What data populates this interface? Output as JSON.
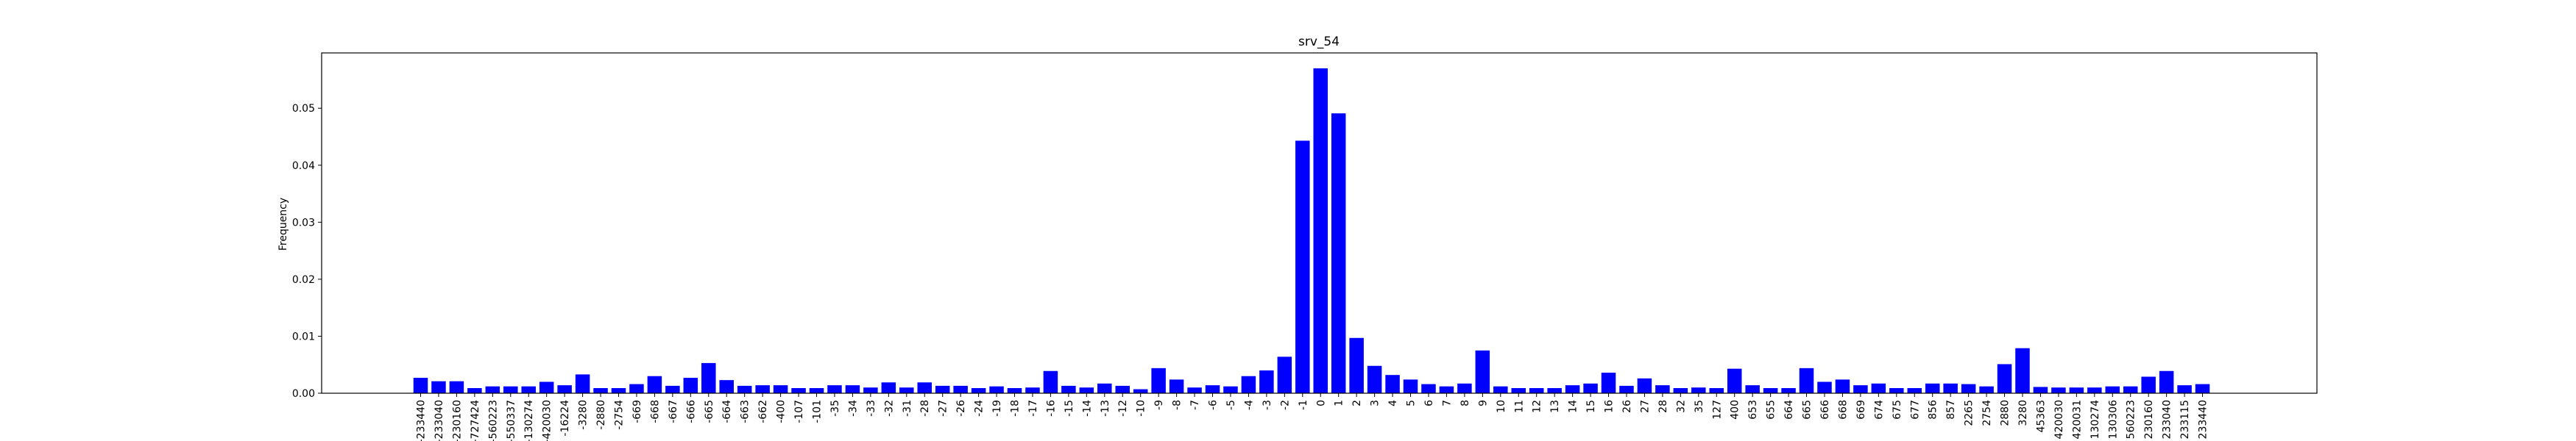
{
  "chart_data": {
    "type": "bar",
    "title": "srv_54",
    "xlabel": "",
    "ylabel": "Frequency",
    "ylim": [
      0,
      0.0597
    ],
    "yticks": [
      0.0,
      0.01,
      0.02,
      0.03,
      0.04,
      0.05
    ],
    "ytick_labels": [
      "0.00",
      "0.01",
      "0.02",
      "0.03",
      "0.04",
      "0.05"
    ],
    "bar_color": "#0000ff",
    "grid": false,
    "categories": [
      "-233440",
      "-233040",
      "-230160",
      "-727424",
      "-560223",
      "-550337",
      "-130274",
      "-420030",
      "-16224",
      "-3280",
      "-2880",
      "-2754",
      "-669",
      "-668",
      "-667",
      "-666",
      "-665",
      "-664",
      "-663",
      "-662",
      "-400",
      "-107",
      "-101",
      "-35",
      "-34",
      "-33",
      "-32",
      "-31",
      "-28",
      "-27",
      "-26",
      "-24",
      "-19",
      "-18",
      "-17",
      "-16",
      "-15",
      "-14",
      "-13",
      "-12",
      "-10",
      "-9",
      "-8",
      "-7",
      "-6",
      "-5",
      "-4",
      "-3",
      "-2",
      "-1",
      "0",
      "1",
      "2",
      "3",
      "4",
      "5",
      "6",
      "7",
      "8",
      "9",
      "10",
      "11",
      "12",
      "13",
      "14",
      "15",
      "16",
      "26",
      "27",
      "28",
      "32",
      "35",
      "127",
      "400",
      "653",
      "655",
      "664",
      "665",
      "666",
      "668",
      "669",
      "674",
      "675",
      "677",
      "856",
      "857",
      "2265",
      "2754",
      "2880",
      "3280",
      "45363",
      "420030",
      "420031",
      "130274",
      "130306",
      "560223",
      "230160",
      "233040",
      "233115",
      "233440"
    ],
    "values": [
      0.0027,
      0.0021,
      0.0021,
      0.0009,
      0.0012,
      0.0012,
      0.0012,
      0.002,
      0.0014,
      0.0033,
      0.0009,
      0.0009,
      0.0016,
      0.003,
      0.0013,
      0.0027,
      0.0053,
      0.0023,
      0.0013,
      0.0014,
      0.0014,
      0.0009,
      0.0009,
      0.0014,
      0.0014,
      0.001,
      0.0019,
      0.001,
      0.0019,
      0.0013,
      0.0013,
      0.0009,
      0.0012,
      0.0009,
      0.001,
      0.0039,
      0.0013,
      0.001,
      0.0017,
      0.0013,
      0.0007,
      0.0044,
      0.0024,
      0.001,
      0.0014,
      0.0012,
      0.003,
      0.004,
      0.0064,
      0.0443,
      0.057,
      0.0491,
      0.0097,
      0.0048,
      0.0032,
      0.0024,
      0.0016,
      0.0012,
      0.0017,
      0.0075,
      0.0012,
      0.0009,
      0.0009,
      0.0009,
      0.0014,
      0.0017,
      0.0036,
      0.0013,
      0.0026,
      0.0014,
      0.0009,
      0.001,
      0.0009,
      0.0043,
      0.0014,
      0.0009,
      0.0009,
      0.0044,
      0.002,
      0.0024,
      0.0014,
      0.0017,
      0.0009,
      0.0009,
      0.0017,
      0.0017,
      0.0016,
      0.0012,
      0.0051,
      0.0079,
      0.0011,
      0.001,
      0.001,
      0.001,
      0.0012,
      0.0012,
      0.0029,
      0.0039,
      0.0014,
      0.0016
    ]
  }
}
